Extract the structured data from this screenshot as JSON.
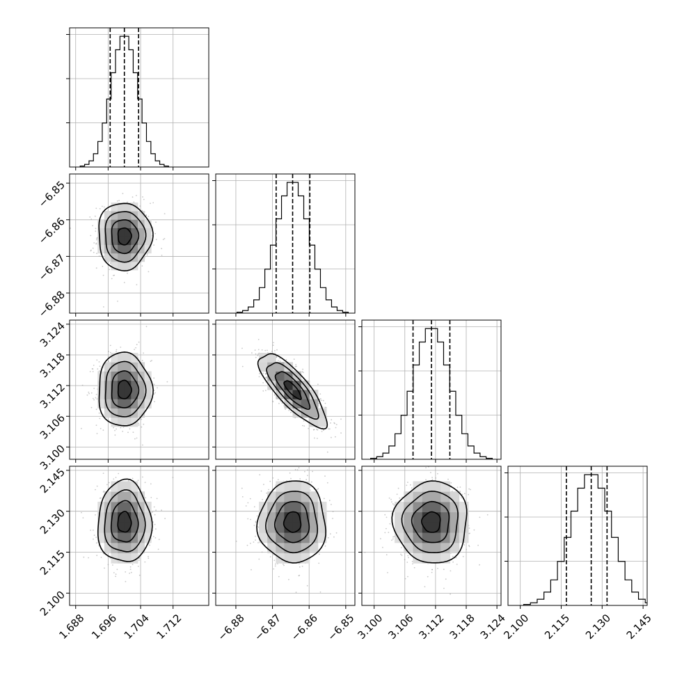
{
  "chart_data": {
    "type": "corner",
    "parameters": [
      {
        "median": 1.7,
        "q16": 1.6965,
        "q84": 1.7035,
        "sigma": 0.0033,
        "range": [
          1.6865,
          1.7208
        ],
        "ticks": [
          1.688,
          1.696,
          1.704,
          1.712
        ],
        "tick_labels": [
          "1.688",
          "1.696",
          "1.704",
          "1.712"
        ]
      },
      {
        "median": -6.8645,
        "q16": -6.869,
        "q84": -6.8598,
        "sigma": 0.0046,
        "range": [
          -6.8855,
          -6.8475
        ],
        "ticks": [
          -6.88,
          -6.87,
          -6.86,
          -6.85
        ],
        "tick_labels": [
          "−6.88",
          "−6.87",
          "−6.86",
          "−6.85"
        ]
      },
      {
        "median": 3.1112,
        "q16": 3.1076,
        "q84": 3.1148,
        "sigma": 0.0036,
        "range": [
          3.0976,
          3.1248
        ],
        "ticks": [
          3.1,
          3.106,
          3.112,
          3.118,
          3.124
        ],
        "tick_labels": [
          "3.100",
          "3.106",
          "3.112",
          "3.118",
          "3.124"
        ]
      },
      {
        "median": 2.126,
        "q16": 2.1169,
        "q84": 2.1318,
        "sigma": 0.0075,
        "range": [
          2.0955,
          2.1465
        ],
        "ticks": [
          2.1,
          2.115,
          2.13,
          2.145
        ],
        "tick_labels": [
          "2.100",
          "2.115",
          "2.130",
          "2.145"
        ]
      }
    ],
    "correlations": [
      [
        1,
        0,
        0,
        0
      ],
      [
        0,
        1,
        -0.8,
        0
      ],
      [
        0,
        -0.8,
        1,
        0
      ],
      [
        0,
        0,
        0,
        1
      ]
    ],
    "grid": true,
    "contour_levels_sigma": [
      0.5,
      1.0,
      1.5,
      2.0
    ],
    "colors": {
      "density": "#000000",
      "points": "#9a9a9a",
      "grid": "#b0b0b0"
    }
  }
}
